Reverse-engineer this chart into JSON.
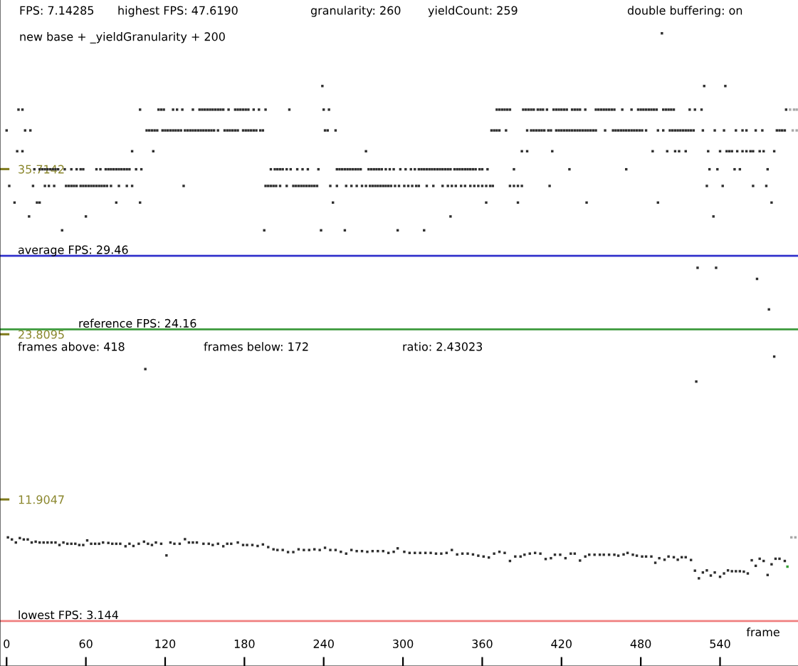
{
  "chart_data": {
    "type": "scatter",
    "xlabel": "frame",
    "annotations": [
      "FPS: 7.14285",
      "highest FPS: 47.6190",
      "granularity: 260",
      "yieldCount: 259",
      "double buffering: on",
      "new base + _yieldGranularity + 200",
      "frames above: 418",
      "frames below: 172",
      "ratio: 2.43023"
    ],
    "xlim": [
      -5,
      599
    ],
    "ylim": [
      -0.1,
      47.9
    ],
    "xticks": [
      0,
      60,
      120,
      180,
      240,
      300,
      360,
      420,
      480,
      540
    ],
    "yticks": [
      35.7142,
      23.8095,
      11.9047
    ],
    "marker": "square",
    "ref_lines": [
      {
        "axis": "y",
        "value": 29.46,
        "label": "average FPS: 29.46",
        "color": "#3333cc"
      },
      {
        "axis": "y",
        "value": 24.16,
        "label": "reference FPS: 24.16",
        "color": "#3c9a3c"
      },
      {
        "axis": "y",
        "value": 3.144,
        "label": "lowest FPS: 3.144",
        "color": "#f08080"
      }
    ],
    "series": [
      {
        "color": "#2e2e2e",
        "x": [
          9,
          12,
          101,
          115,
          117,
          119,
          126,
          129,
          133,
          141,
          146,
          148,
          150,
          152,
          154,
          156,
          158,
          160,
          162,
          164,
          168,
          173,
          175,
          177,
          179,
          181,
          183,
          187,
          191,
          196,
          214,
          240,
          244,
          371,
          373,
          375,
          377,
          379,
          381,
          391,
          393,
          395,
          397,
          399,
          402,
          404,
          406,
          409,
          414,
          416,
          418,
          420,
          422,
          424,
          428,
          430,
          432,
          434,
          438,
          446,
          448,
          450,
          452,
          454,
          456,
          458,
          460,
          466,
          473,
          478,
          480,
          482,
          484,
          486,
          488,
          490,
          492,
          497,
          499,
          501,
          503,
          505,
          517,
          521,
          526,
          590
        ],
        "values": [
          40.0,
          40.0,
          40.0,
          40.0,
          40.0,
          40.0,
          40.0,
          40.0,
          40.0,
          40.0,
          40.0,
          40.0,
          40.0,
          40.0,
          40.0,
          40.0,
          40.0,
          40.0,
          40.0,
          40.0,
          40.0,
          40.0,
          40.0,
          40.0,
          40.0,
          40.0,
          40.0,
          40.0,
          40.0,
          40.0,
          40.0,
          40.0,
          40.0,
          40.0,
          40.0,
          40.0,
          40.0,
          40.0,
          40.0,
          40.0,
          40.0,
          40.0,
          40.0,
          40.0,
          40.0,
          40.0,
          40.0,
          40.0,
          40.0,
          40.0,
          40.0,
          40.0,
          40.0,
          40.0,
          40.0,
          40.0,
          40.0,
          40.0,
          40.0,
          40.0,
          40.0,
          40.0,
          40.0,
          40.0,
          40.0,
          40.0,
          40.0,
          40.0,
          40.0,
          40.0,
          40.0,
          40.0,
          40.0,
          40.0,
          40.0,
          40.0,
          40.0,
          40.0,
          40.0,
          40.0,
          40.0,
          40.0,
          40.0,
          40.0,
          40.0,
          40.0
        ]
      },
      {
        "color": "#2e2e2e",
        "x": [
          0,
          14,
          18,
          106,
          108,
          110,
          112,
          114,
          118,
          120,
          122,
          124,
          126,
          128,
          130,
          132,
          135,
          137,
          139,
          141,
          143,
          145,
          147,
          149,
          151,
          153,
          155,
          157,
          160,
          165,
          167,
          169,
          171,
          173,
          175,
          179,
          181,
          183,
          185,
          187,
          189,
          192,
          194,
          241,
          243,
          249,
          367,
          369,
          371,
          373,
          378,
          394,
          397,
          399,
          401,
          403,
          405,
          407,
          410,
          412,
          416,
          418,
          420,
          422,
          424,
          426,
          428,
          430,
          432,
          434,
          436,
          438,
          440,
          442,
          444,
          446,
          453,
          459,
          461,
          463,
          465,
          467,
          469,
          471,
          473,
          475,
          477,
          479,
          481,
          484,
          493,
          497,
          502,
          504,
          506,
          508,
          510,
          512,
          514,
          516,
          518,
          520,
          527,
          536,
          543,
          552,
          557,
          560,
          567,
          572,
          583,
          585,
          587,
          589
        ],
        "values": [
          38.5,
          38.5,
          38.5,
          38.5,
          38.5,
          38.5,
          38.5,
          38.5,
          38.5,
          38.5,
          38.5,
          38.5,
          38.5,
          38.5,
          38.5,
          38.5,
          38.5,
          38.5,
          38.5,
          38.5,
          38.5,
          38.5,
          38.5,
          38.5,
          38.5,
          38.5,
          38.5,
          38.5,
          38.5,
          38.5,
          38.5,
          38.5,
          38.5,
          38.5,
          38.5,
          38.5,
          38.5,
          38.5,
          38.5,
          38.5,
          38.5,
          38.5,
          38.5,
          38.5,
          38.5,
          38.5,
          38.5,
          38.5,
          38.5,
          38.5,
          38.5,
          38.5,
          38.5,
          38.5,
          38.5,
          38.5,
          38.5,
          38.5,
          38.5,
          38.5,
          38.5,
          38.5,
          38.5,
          38.5,
          38.5,
          38.5,
          38.5,
          38.5,
          38.5,
          38.5,
          38.5,
          38.5,
          38.5,
          38.5,
          38.5,
          38.5,
          38.5,
          38.5,
          38.5,
          38.5,
          38.5,
          38.5,
          38.5,
          38.5,
          38.5,
          38.5,
          38.5,
          38.5,
          38.5,
          38.5,
          38.5,
          38.5,
          38.5,
          38.5,
          38.5,
          38.5,
          38.5,
          38.5,
          38.5,
          38.5,
          38.5,
          38.5,
          38.5,
          38.5,
          38.5,
          38.5,
          38.5,
          38.5,
          38.5,
          38.5,
          38.5,
          38.5,
          38.5,
          38.5
        ]
      },
      {
        "color": "#2e2e2e",
        "x": [
          8,
          12,
          95,
          111,
          272,
          390,
          394,
          413,
          489,
          500,
          506,
          509,
          514,
          531,
          540,
          545,
          547,
          549,
          553,
          557,
          560,
          563,
          565,
          570,
          573,
          581
        ],
        "values": [
          37.0,
          37.0,
          37.0,
          37.0,
          37.0,
          37.0,
          37.0,
          37.0,
          37.0,
          37.0,
          37.0,
          37.0,
          37.0,
          37.0,
          37.0,
          37.0,
          37.0,
          37.0,
          37.0,
          37.0,
          37.0,
          37.0,
          37.0,
          37.0,
          37.0,
          37.0
        ]
      },
      {
        "color": "#2e2e2e",
        "x": [
          21,
          25,
          27,
          29,
          31,
          33,
          35,
          37,
          39,
          44,
          49,
          53,
          56,
          58,
          68,
          71,
          75,
          77,
          79,
          81,
          83,
          85,
          87,
          89,
          91,
          93,
          98,
          102,
          200,
          203,
          205,
          207,
          209,
          212,
          215,
          220,
          224,
          228,
          236,
          250,
          252,
          254,
          256,
          258,
          260,
          262,
          264,
          266,
          268,
          274,
          276,
          278,
          280,
          282,
          284,
          287,
          290,
          293,
          298,
          302,
          306,
          309,
          312,
          314,
          316,
          318,
          320,
          322,
          324,
          326,
          328,
          330,
          332,
          334,
          336,
          339,
          341,
          343,
          345,
          347,
          349,
          351,
          353,
          355,
          358,
          360,
          364,
          384,
          426,
          469,
          532,
          538,
          551,
          555,
          576
        ],
        "values": [
          35.7,
          35.7,
          35.7,
          35.7,
          35.7,
          35.7,
          35.7,
          35.7,
          35.7,
          35.7,
          35.7,
          35.7,
          35.7,
          35.7,
          35.7,
          35.7,
          35.7,
          35.7,
          35.7,
          35.7,
          35.7,
          35.7,
          35.7,
          35.7,
          35.7,
          35.7,
          35.7,
          35.7,
          35.7,
          35.7,
          35.7,
          35.7,
          35.7,
          35.7,
          35.7,
          35.7,
          35.7,
          35.7,
          35.7,
          35.7,
          35.7,
          35.7,
          35.7,
          35.7,
          35.7,
          35.7,
          35.7,
          35.7,
          35.7,
          35.7,
          35.7,
          35.7,
          35.7,
          35.7,
          35.7,
          35.7,
          35.7,
          35.7,
          35.7,
          35.7,
          35.7,
          35.7,
          35.7,
          35.7,
          35.7,
          35.7,
          35.7,
          35.7,
          35.7,
          35.7,
          35.7,
          35.7,
          35.7,
          35.7,
          35.7,
          35.7,
          35.7,
          35.7,
          35.7,
          35.7,
          35.7,
          35.7,
          35.7,
          35.7,
          35.7,
          35.7,
          35.7,
          35.7,
          35.7,
          35.7,
          35.7,
          35.7,
          35.7,
          35.7,
          35.7
        ]
      },
      {
        "color": "#2e2e2e",
        "x": [
          2,
          20,
          29,
          32,
          36,
          45,
          47,
          49,
          51,
          53,
          56,
          58,
          60,
          62,
          64,
          66,
          68,
          70,
          72,
          74,
          76,
          79,
          85,
          91,
          95,
          134,
          196,
          198,
          200,
          202,
          204,
          207,
          212,
          217,
          219,
          221,
          223,
          225,
          227,
          229,
          231,
          233,
          235,
          245,
          250,
          257,
          261,
          265,
          269,
          272,
          275,
          277,
          279,
          281,
          283,
          285,
          287,
          289,
          291,
          294,
          297,
          301,
          304,
          307,
          310,
          312,
          318,
          323,
          330,
          334,
          337,
          340,
          344,
          347,
          351,
          354,
          357,
          360,
          363,
          366,
          368,
          381,
          384,
          387,
          390,
          411,
          530,
          542,
          565,
          575
        ],
        "values": [
          34.5,
          34.5,
          34.5,
          34.5,
          34.5,
          34.5,
          34.5,
          34.5,
          34.5,
          34.5,
          34.5,
          34.5,
          34.5,
          34.5,
          34.5,
          34.5,
          34.5,
          34.5,
          34.5,
          34.5,
          34.5,
          34.5,
          34.5,
          34.5,
          34.5,
          34.5,
          34.5,
          34.5,
          34.5,
          34.5,
          34.5,
          34.5,
          34.5,
          34.5,
          34.5,
          34.5,
          34.5,
          34.5,
          34.5,
          34.5,
          34.5,
          34.5,
          34.5,
          34.5,
          34.5,
          34.5,
          34.5,
          34.5,
          34.5,
          34.5,
          34.5,
          34.5,
          34.5,
          34.5,
          34.5,
          34.5,
          34.5,
          34.5,
          34.5,
          34.5,
          34.5,
          34.5,
          34.5,
          34.5,
          34.5,
          34.5,
          34.5,
          34.5,
          34.5,
          34.5,
          34.5,
          34.5,
          34.5,
          34.5,
          34.5,
          34.5,
          34.5,
          34.5,
          34.5,
          34.5,
          34.5,
          34.5,
          34.5,
          34.5,
          34.5,
          34.5,
          34.5,
          34.5,
          34.5,
          34.5
        ]
      },
      {
        "color": "#2e2e2e",
        "x": [
          6,
          23,
          25,
          83,
          101,
          247,
          363,
          387,
          439,
          493,
          579,
          17,
          60,
          336,
          535,
          42,
          195,
          238,
          256,
          296,
          316,
          239,
          528,
          544,
          496,
          523,
          537,
          568,
          577,
          581,
          105,
          522
        ],
        "values": [
          33.3,
          33.3,
          33.3,
          33.3,
          33.3,
          33.3,
          33.3,
          33.3,
          33.3,
          33.3,
          33.3,
          32.3,
          32.3,
          32.3,
          32.3,
          31.3,
          31.3,
          31.3,
          31.3,
          31.3,
          31.3,
          41.7,
          41.7,
          41.7,
          45.5,
          28.6,
          28.6,
          27.8,
          25.6,
          22.2,
          21.3,
          20.4
        ]
      },
      {
        "color": "#2e2e2e",
        "x": [
          1,
          4,
          7,
          10,
          13,
          16,
          19,
          22,
          25,
          28,
          31,
          34,
          37,
          40,
          43,
          46,
          49,
          52,
          55,
          58,
          61,
          64,
          67,
          70,
          73,
          77,
          80,
          83,
          86,
          90,
          93,
          96,
          100,
          104,
          107,
          110,
          113,
          117,
          121,
          124,
          127,
          131,
          135,
          138,
          141,
          144,
          149,
          153,
          156,
          160,
          164,
          167,
          170,
          175,
          179,
          182,
          186,
          190,
          194,
          198,
          202,
          205,
          209,
          213,
          217,
          221,
          225,
          229,
          233,
          237,
          241,
          245,
          249,
          253,
          257,
          261,
          265,
          269,
          273,
          277,
          281,
          285,
          289,
          293,
          296,
          301,
          305,
          309,
          313,
          317,
          321,
          325,
          329,
          333,
          337,
          341,
          345,
          349,
          353,
          357,
          361,
          365,
          369,
          373,
          377,
          381,
          385,
          389,
          392,
          396,
          400,
          404,
          408,
          412,
          415,
          419,
          423,
          427,
          430,
          434,
          438,
          441,
          445,
          449,
          452,
          456,
          460,
          463,
          467,
          470,
          474,
          477,
          481,
          484,
          488,
          491,
          494,
          498,
          501,
          505,
          508,
          511,
          514,
          518,
          521,
          524,
          527,
          530,
          533,
          536,
          540,
          543,
          546,
          549,
          552,
          555,
          558,
          561,
          564,
          567,
          570,
          573,
          576,
          579,
          582,
          585,
          589
        ],
        "values": [
          9.17,
          9.02,
          8.8,
          9.12,
          9.02,
          9.02,
          8.8,
          8.86,
          8.8,
          8.8,
          8.8,
          8.8,
          8.8,
          8.62,
          8.8,
          8.71,
          8.71,
          8.71,
          8.62,
          8.62,
          8.95,
          8.71,
          8.71,
          8.71,
          8.8,
          8.77,
          8.71,
          8.71,
          8.71,
          8.53,
          8.71,
          8.55,
          8.71,
          8.86,
          8.71,
          8.62,
          8.8,
          8.71,
          7.87,
          8.8,
          8.71,
          8.71,
          9.04,
          8.8,
          8.8,
          8.8,
          8.71,
          8.71,
          8.62,
          8.71,
          8.53,
          8.71,
          8.71,
          8.8,
          8.62,
          8.62,
          8.62,
          8.55,
          8.66,
          8.47,
          8.31,
          8.26,
          8.26,
          8.11,
          8.11,
          8.31,
          8.26,
          8.26,
          8.31,
          8.26,
          8.42,
          8.26,
          8.26,
          8.13,
          8.0,
          8.26,
          8.18,
          8.18,
          8.13,
          8.18,
          8.18,
          8.18,
          8.05,
          8.13,
          8.38,
          8.13,
          8.05,
          8.05,
          8.05,
          8.05,
          8.05,
          8.0,
          8.0,
          8.05,
          8.26,
          7.94,
          8.0,
          8.0,
          7.94,
          7.85,
          7.79,
          7.72,
          8.0,
          8.13,
          8.05,
          7.47,
          7.79,
          7.79,
          7.92,
          8.0,
          8.05,
          8.0,
          7.61,
          7.67,
          7.92,
          7.92,
          7.67,
          8.0,
          8.0,
          7.5,
          7.79,
          7.92,
          7.92,
          7.92,
          7.92,
          7.92,
          7.92,
          7.85,
          7.94,
          8.05,
          7.92,
          7.85,
          7.79,
          7.79,
          7.79,
          7.34,
          7.67,
          7.56,
          7.79,
          7.74,
          7.56,
          7.74,
          7.74,
          7.54,
          6.77,
          6.22,
          6.64,
          6.79,
          6.42,
          6.64,
          6.33,
          6.57,
          6.79,
          6.73,
          6.73,
          6.73,
          6.7,
          6.57,
          7.52,
          7.12,
          7.63,
          7.47,
          6.46,
          7.23,
          7.63,
          7.63,
          7.47
        ]
      },
      {
        "color": "#a8a8a8",
        "x": [
          593,
          596,
          598,
          595,
          598,
          594,
          597
        ],
        "values": [
          40.0,
          40.0,
          40.0,
          38.5,
          38.5,
          9.17,
          9.17
        ]
      },
      {
        "color": "#33a033",
        "x": [
          591
        ],
        "values": [
          7.06
        ]
      }
    ]
  }
}
